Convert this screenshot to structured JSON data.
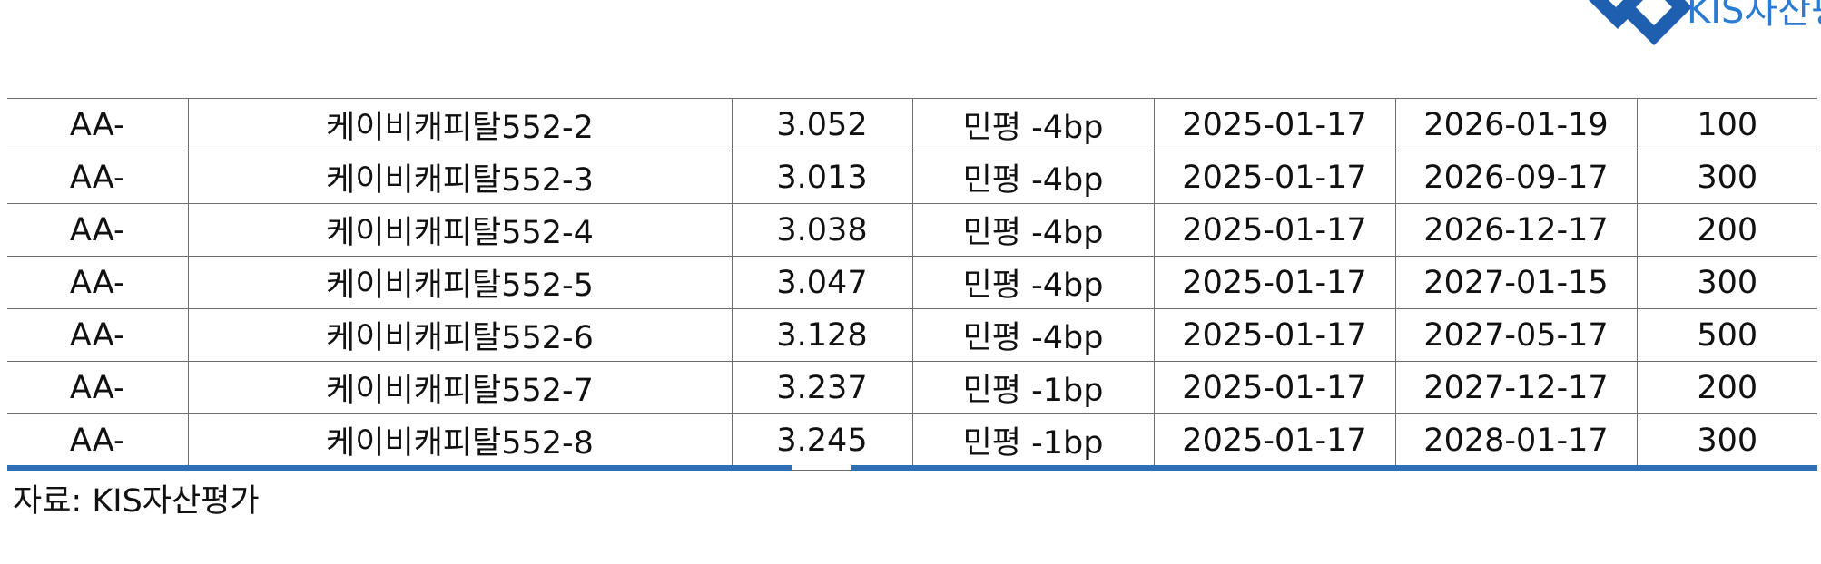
{
  "logo": {
    "text": "KIS자산평",
    "brand_color": "#2b7bd0"
  },
  "table": {
    "rows": [
      {
        "rating": "AA-",
        "issue": "케이비캐피탈552-2",
        "yield": "3.052",
        "spread": "민평 -4bp",
        "issue_date": "2025-01-17",
        "maturity": "2026-01-19",
        "amount": "100"
      },
      {
        "rating": "AA-",
        "issue": "케이비캐피탈552-3",
        "yield": "3.013",
        "spread": "민평 -4bp",
        "issue_date": "2025-01-17",
        "maturity": "2026-09-17",
        "amount": "300"
      },
      {
        "rating": "AA-",
        "issue": "케이비캐피탈552-4",
        "yield": "3.038",
        "spread": "민평 -4bp",
        "issue_date": "2025-01-17",
        "maturity": "2026-12-17",
        "amount": "200"
      },
      {
        "rating": "AA-",
        "issue": "케이비캐피탈552-5",
        "yield": "3.047",
        "spread": "민평 -4bp",
        "issue_date": "2025-01-17",
        "maturity": "2027-01-15",
        "amount": "300"
      },
      {
        "rating": "AA-",
        "issue": "케이비캐피탈552-6",
        "yield": "3.128",
        "spread": "민평 -4bp",
        "issue_date": "2025-01-17",
        "maturity": "2027-05-17",
        "amount": "500"
      },
      {
        "rating": "AA-",
        "issue": "케이비캐피탈552-7",
        "yield": "3.237",
        "spread": "민평 -1bp",
        "issue_date": "2025-01-17",
        "maturity": "2027-12-17",
        "amount": "200"
      },
      {
        "rating": "AA-",
        "issue": "케이비캐피탈552-8",
        "yield": "3.245",
        "spread": "민평 -1bp",
        "issue_date": "2025-01-17",
        "maturity": "2028-01-17",
        "amount": "300"
      }
    ],
    "rule_color": "#2f6fb6"
  },
  "source": {
    "text": "자료: KIS자산평가"
  }
}
